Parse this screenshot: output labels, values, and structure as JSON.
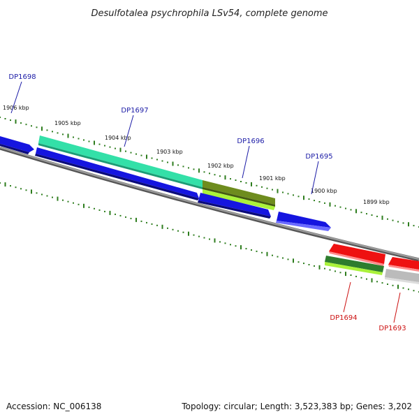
{
  "title": "Desulfotalea psychrophila LSv54, complete genome",
  "footer": {
    "accession": "Accession: NC_006138",
    "topology": "Topology: circular; Length: 3,523,383 bp; Genes: 3,202"
  },
  "colors": {
    "forward_cds": "#1515e0",
    "reverse_cds": "#ee1111",
    "backbone": "#7a7a7a",
    "ticks": "#2e7d1e",
    "highlight_teal": "#33e0a8",
    "highlight_olive": "#6e8c1e",
    "highlight_lime": "#aaf23a",
    "highlight_darkgreen": "#2e7d2e",
    "highlight_grey": "#bbbbbb"
  },
  "kbp_labels": [
    "1906 kbp",
    "1905 kbp",
    "1904 kbp",
    "1903 kbp",
    "1902 kbp",
    "1901 kbp",
    "1900 kbp",
    "1899 kbp"
  ],
  "genes_forward": [
    "DP1698",
    "DP1697",
    "DP1696",
    "DP1695"
  ],
  "genes_reverse": [
    "DP1694",
    "DP1693"
  ]
}
